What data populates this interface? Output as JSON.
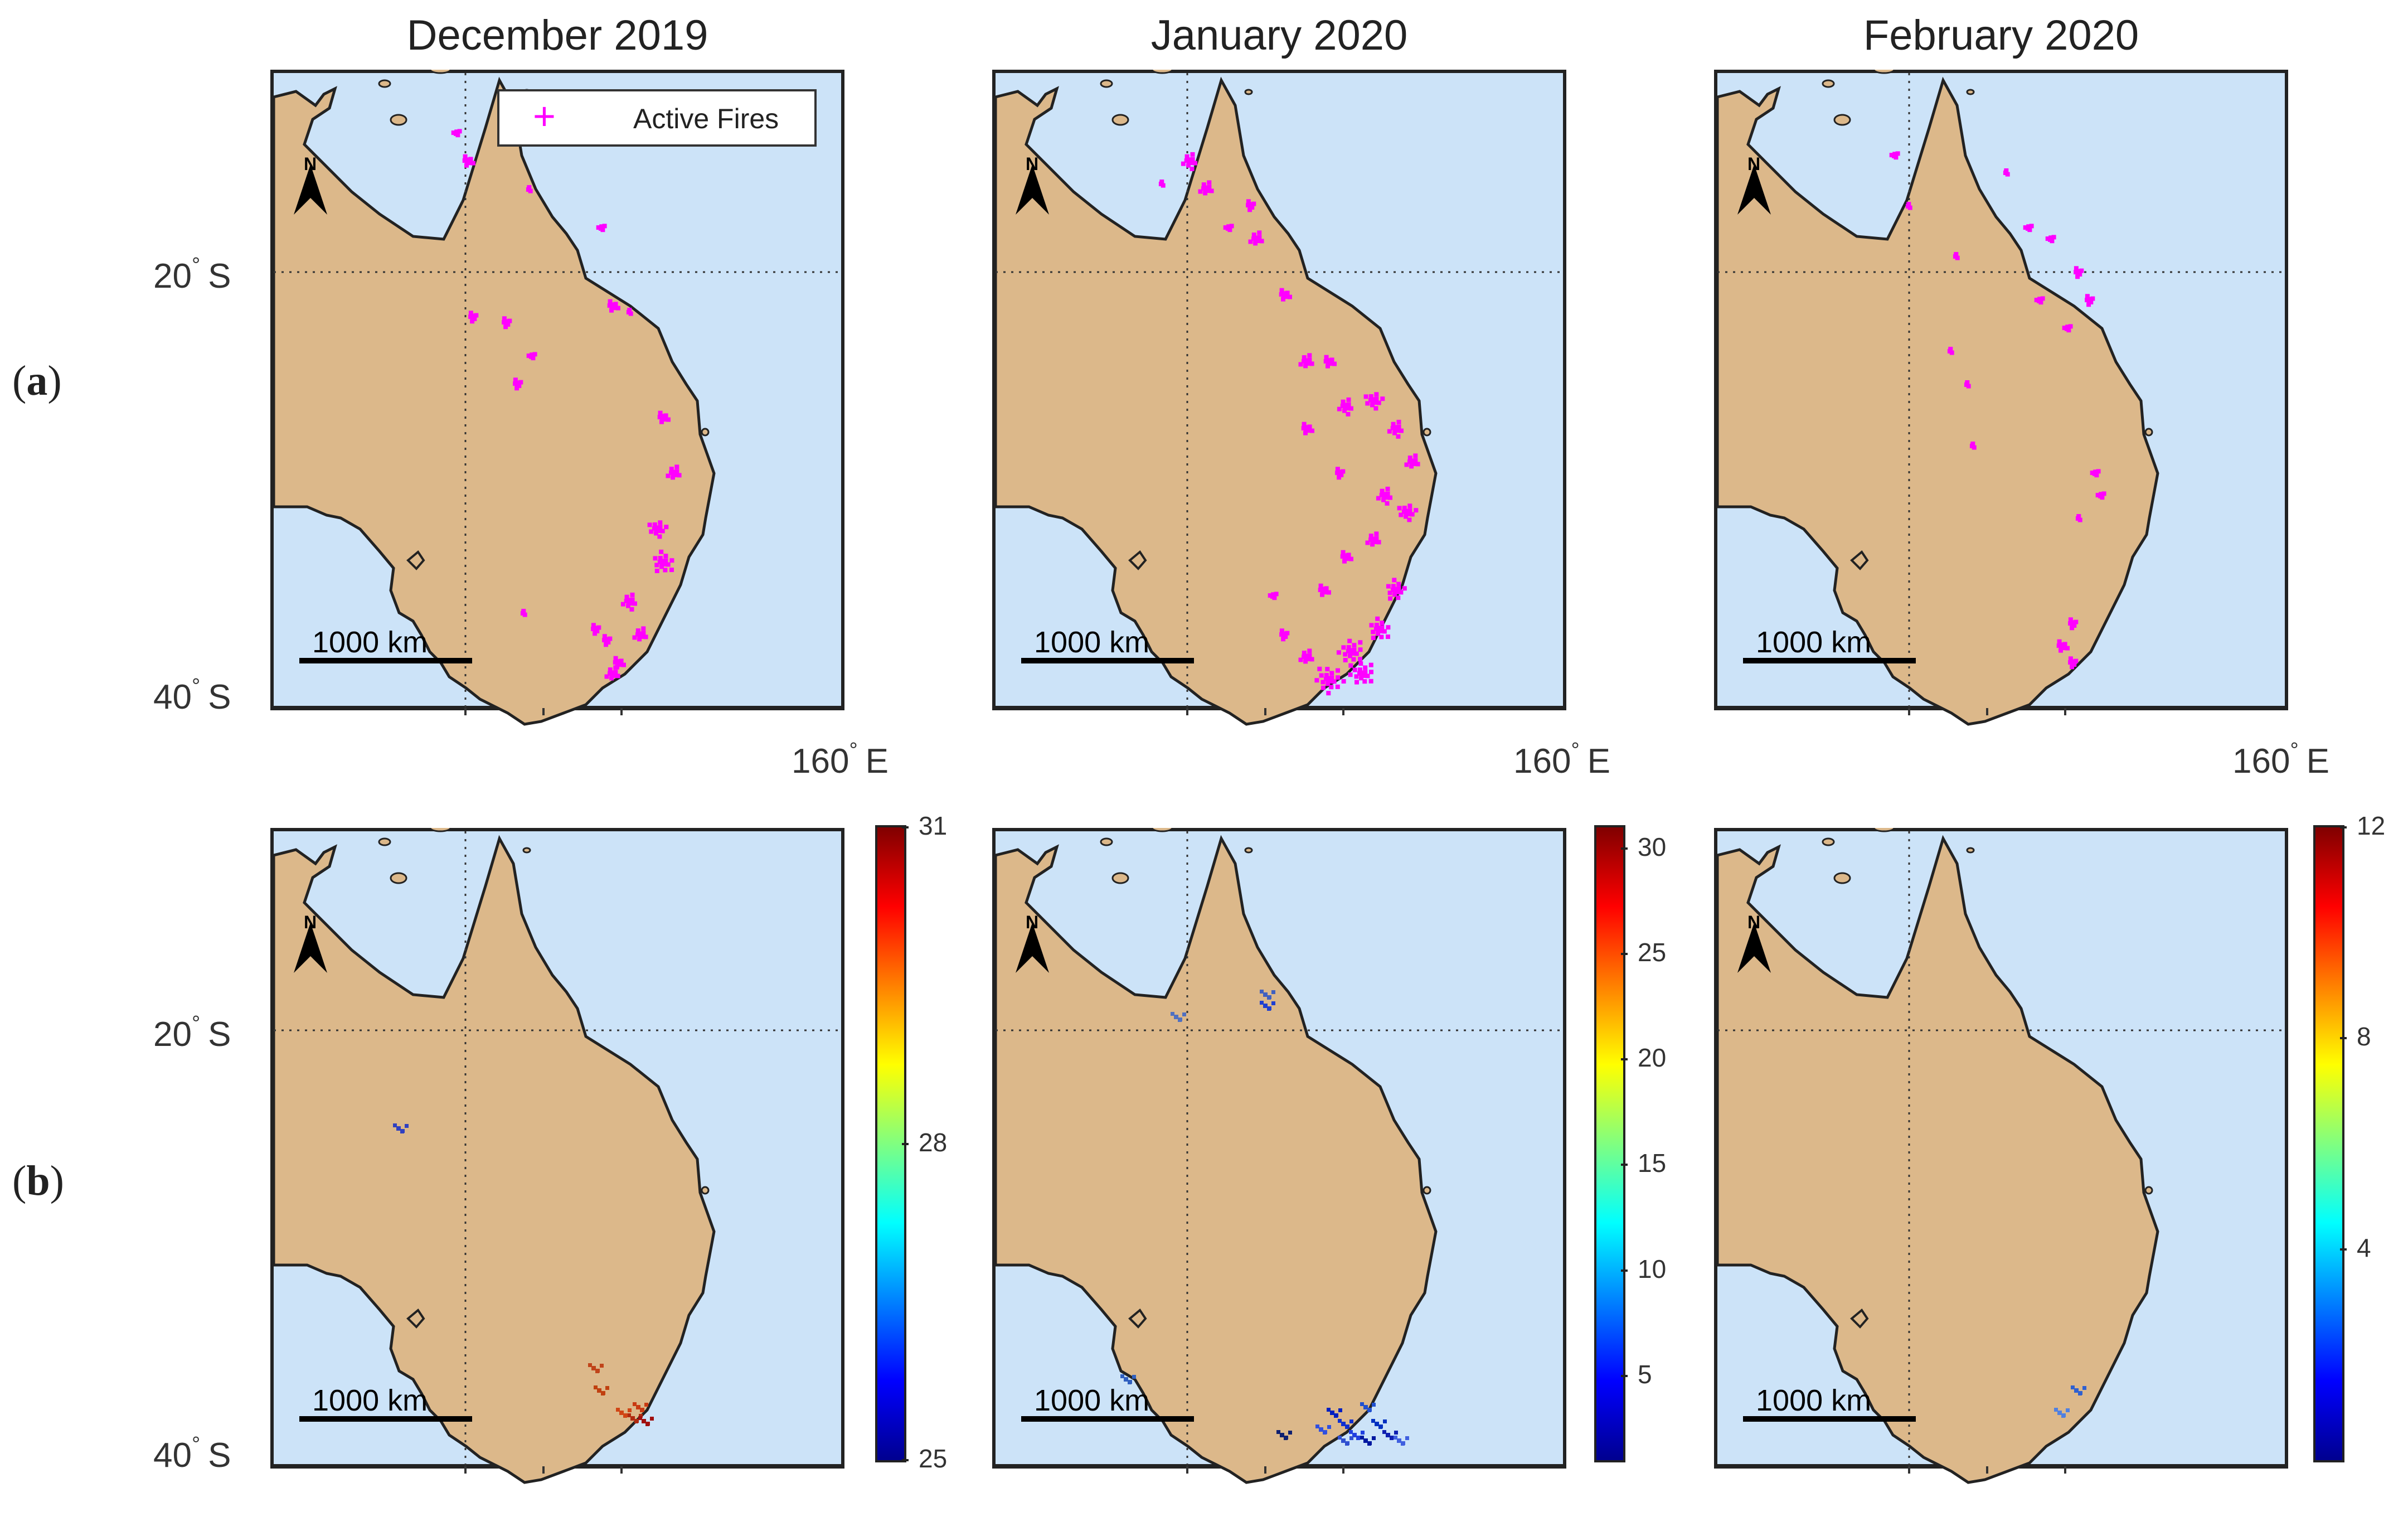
{
  "columns": [
    "December 2019",
    "January 2020",
    "February 2020"
  ],
  "rows": {
    "a": {
      "open": "(",
      "letter": "a",
      "close": ")"
    },
    "b": {
      "open": "(",
      "letter": "b",
      "close": ")"
    }
  },
  "axes": {
    "lat_20": "20",
    "lat_40": "40",
    "lat_hemi": "S",
    "lon_160": "160",
    "lon_hemi": "E",
    "degree": "°"
  },
  "legend": {
    "marker": "+",
    "label": "Active Fires"
  },
  "scale_bar": "1000 km",
  "north_arrow": "N",
  "colorbars": [
    {
      "min": 25,
      "max": 31,
      "ticks": [
        "31",
        "28",
        "25"
      ]
    },
    {
      "min": 1,
      "max": 31,
      "ticks": [
        "30",
        "25",
        "20",
        "15",
        "10",
        "5"
      ]
    },
    {
      "min": 0,
      "max": 12,
      "ticks": [
        "12",
        "8",
        "4"
      ]
    }
  ],
  "colors": {
    "ocean": "#cce3f8",
    "land": "#dcb88a",
    "fire": "#ff00ff",
    "border": "#222222"
  },
  "chart_data": {
    "type": "map",
    "colormap": "jet",
    "extent_lat": [
      -10,
      -40
    ],
    "extent_lon": [
      136,
      158
    ],
    "gridlines_lat": [
      -20
    ],
    "gridlines_lon": [
      145
    ]
  }
}
